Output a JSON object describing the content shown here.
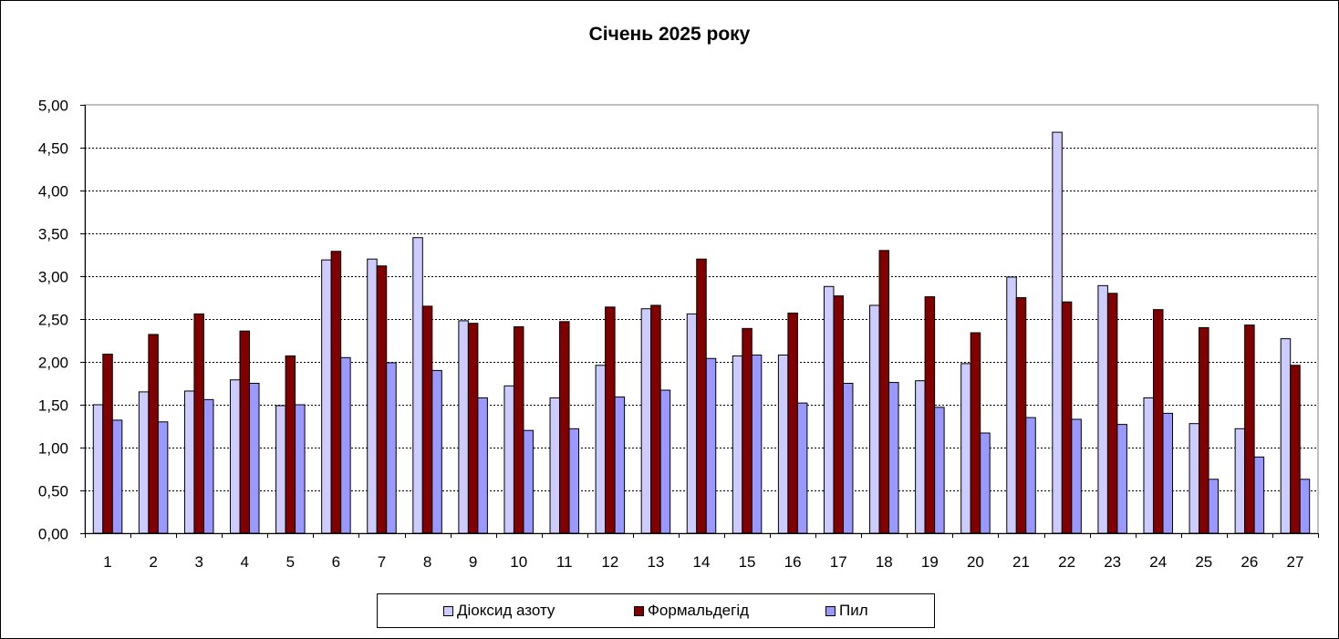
{
  "chart_data": {
    "type": "bar",
    "title": "Січень 2025 року",
    "categories": [
      "1",
      "2",
      "3",
      "4",
      "5",
      "6",
      "7",
      "8",
      "9",
      "10",
      "11",
      "12",
      "13",
      "14",
      "15",
      "16",
      "17",
      "18",
      "19",
      "20",
      "21",
      "22",
      "23",
      "24",
      "25",
      "26",
      "27"
    ],
    "series": [
      {
        "name": "Діоксид азоту",
        "color": "#ccccff",
        "values": [
          1.5,
          1.65,
          1.66,
          1.79,
          1.49,
          3.19,
          3.2,
          3.45,
          2.48,
          1.72,
          1.58,
          1.96,
          2.62,
          2.56,
          2.07,
          2.08,
          2.88,
          2.66,
          1.78,
          1.98,
          2.99,
          4.68,
          2.89,
          1.58,
          1.28,
          1.22,
          2.27
        ]
      },
      {
        "name": "Формальдегід",
        "color": "#800000",
        "values": [
          2.09,
          2.32,
          2.56,
          2.36,
          2.07,
          3.29,
          3.12,
          2.65,
          2.45,
          2.41,
          2.47,
          2.64,
          2.66,
          3.2,
          2.39,
          2.57,
          2.77,
          3.3,
          2.76,
          2.34,
          2.75,
          2.7,
          2.8,
          2.61,
          2.4,
          2.43,
          1.96
        ]
      },
      {
        "name": "Пил",
        "color": "#9999ff",
        "values": [
          1.32,
          1.3,
          1.56,
          1.75,
          1.5,
          2.05,
          1.99,
          1.9,
          1.58,
          1.2,
          1.22,
          1.59,
          1.67,
          2.04,
          2.08,
          1.52,
          1.75,
          1.76,
          1.47,
          1.17,
          1.35,
          1.33,
          1.27,
          1.4,
          0.63,
          0.89,
          0.63
        ]
      }
    ],
    "y_ticks": [
      "0,00",
      "0,50",
      "1,00",
      "1,50",
      "2,00",
      "2,50",
      "3,00",
      "3,50",
      "4,00",
      "4,50",
      "5,00"
    ],
    "ylim": [
      0,
      5
    ],
    "y_step": 0.5,
    "grid": true,
    "legend_position": "bottom"
  }
}
